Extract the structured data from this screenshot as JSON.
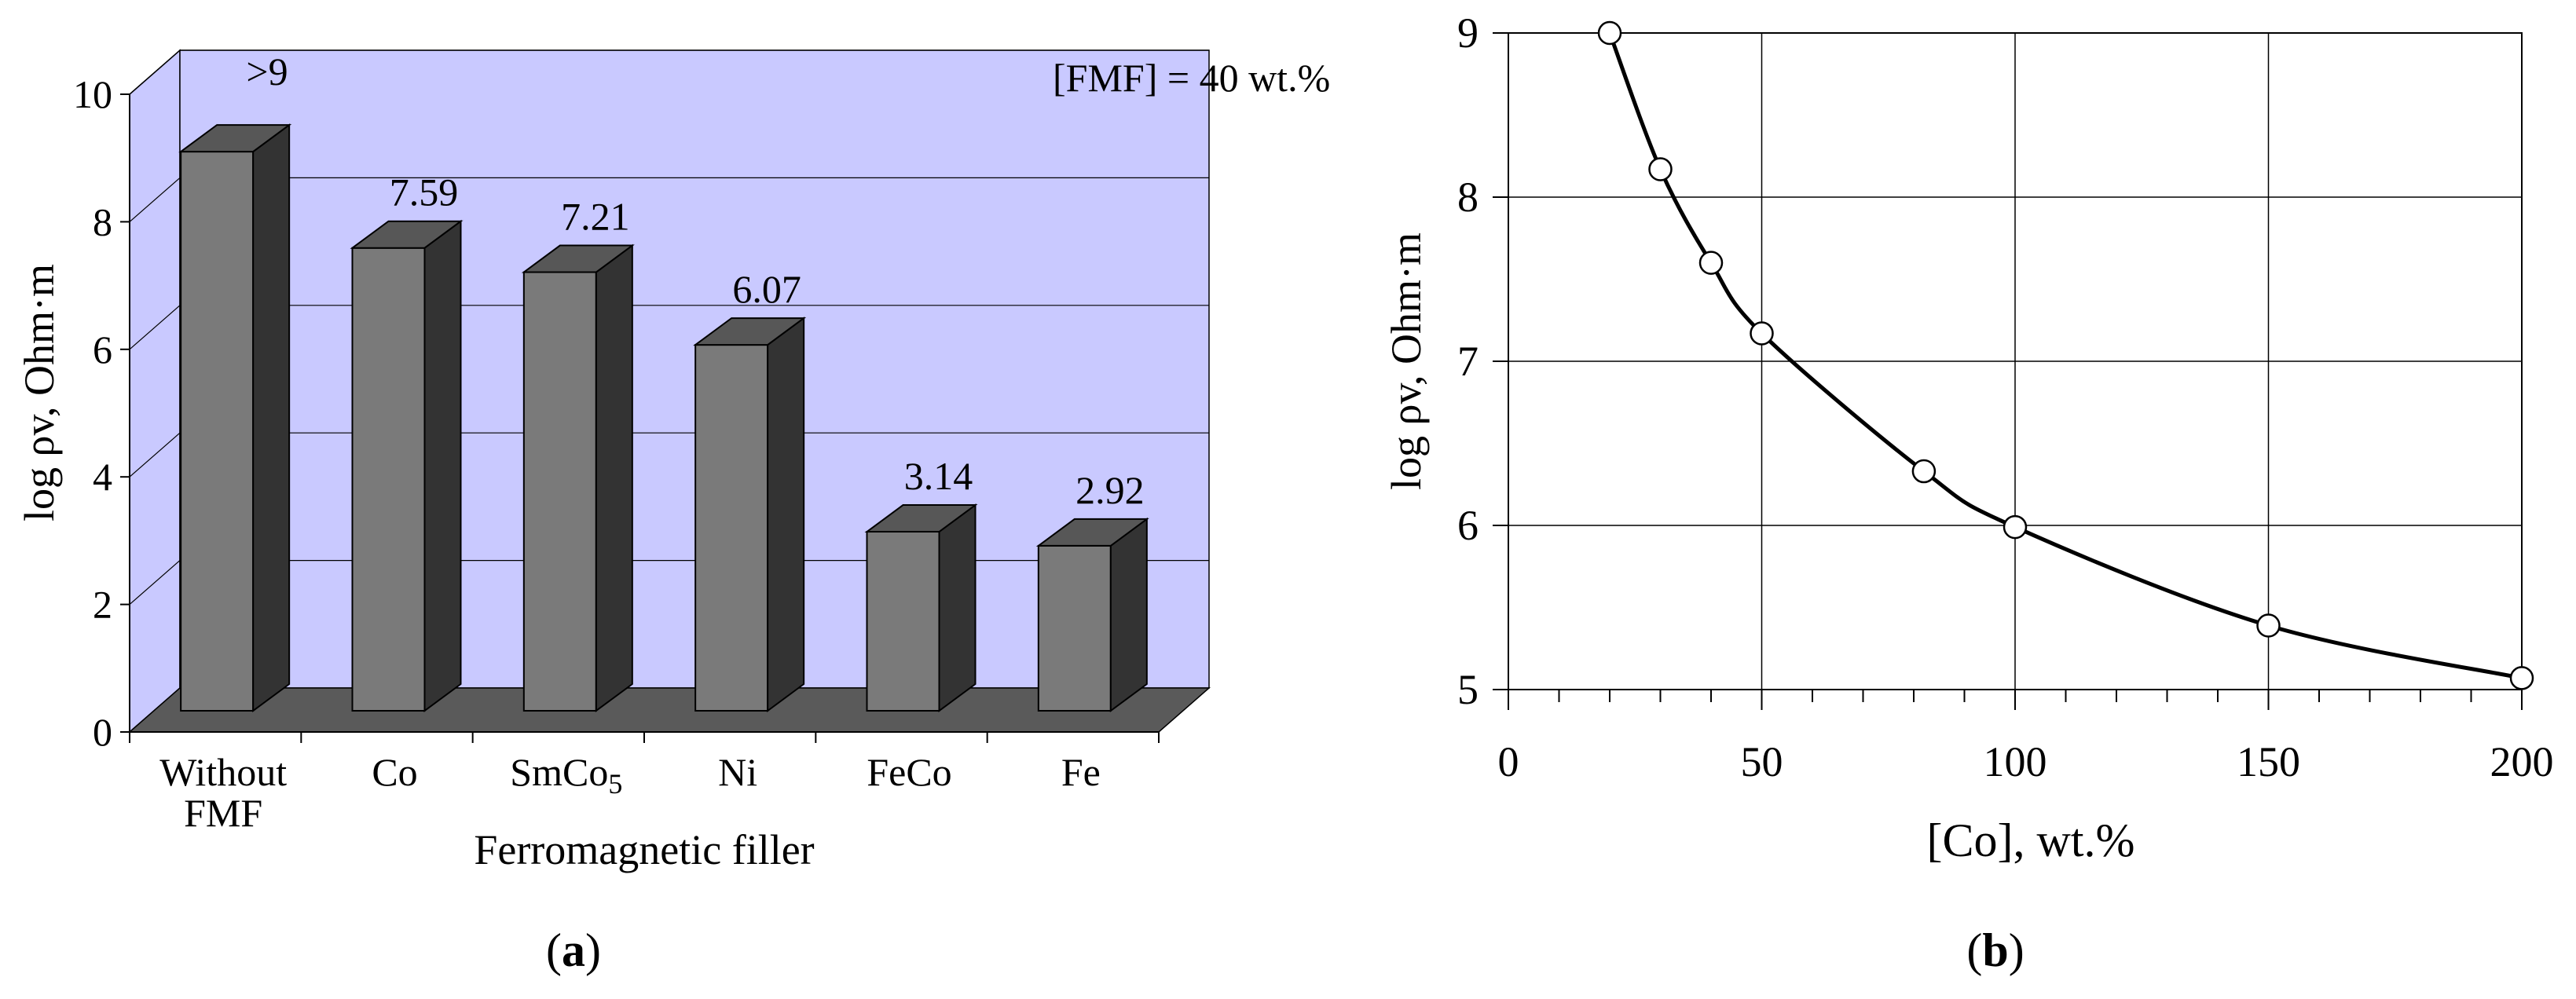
{
  "chart_data": [
    {
      "type": "bar",
      "panel_label": "a",
      "title": "",
      "annotation": "[FMF] = 40 wt.%",
      "xlabel": "Ferromagnetic filler",
      "ylabel": "log ρv, Ohm·m",
      "ylim": [
        0,
        10
      ],
      "yticks": [
        0,
        2,
        4,
        6,
        8,
        10
      ],
      "categories": [
        {
          "line1": "Without",
          "line2": "FMF"
        },
        {
          "line1": "Co",
          "line2": ""
        },
        {
          "line1": "SmCo",
          "sub": "5",
          "line2": ""
        },
        {
          "line1": "Ni",
          "line2": ""
        },
        {
          "line1": "FeCo",
          "line2": ""
        },
        {
          "line1": "Fe",
          "line2": ""
        }
      ],
      "values": [
        9.1,
        7.59,
        7.21,
        6.07,
        3.14,
        2.92
      ],
      "value_labels": [
        ">9",
        "7.59",
        "7.21",
        "6.07",
        "3.14",
        "2.92"
      ],
      "colors": {
        "wall": "#c9c9ff",
        "floor": "#5a5a5a",
        "bar_front": "#7a7a7a",
        "bar_top": "#575757",
        "bar_side": "#333333"
      }
    },
    {
      "type": "line",
      "panel_label": "b",
      "title": "",
      "xlabel": "[Co], wt.%",
      "ylabel": "log ρv, Ohm·m",
      "xlim": [
        0,
        200
      ],
      "ylim": [
        5,
        9
      ],
      "xticks": [
        0,
        50,
        100,
        150,
        200
      ],
      "yticks": [
        5,
        6,
        7,
        8,
        9
      ],
      "grid": true,
      "series": [
        {
          "name": "log ρv",
          "x": [
            20,
            30,
            40,
            50,
            82,
            100,
            150,
            200
          ],
          "y": [
            9.0,
            8.17,
            7.6,
            7.17,
            6.33,
            5.99,
            5.39,
            5.07
          ]
        }
      ]
    }
  ]
}
